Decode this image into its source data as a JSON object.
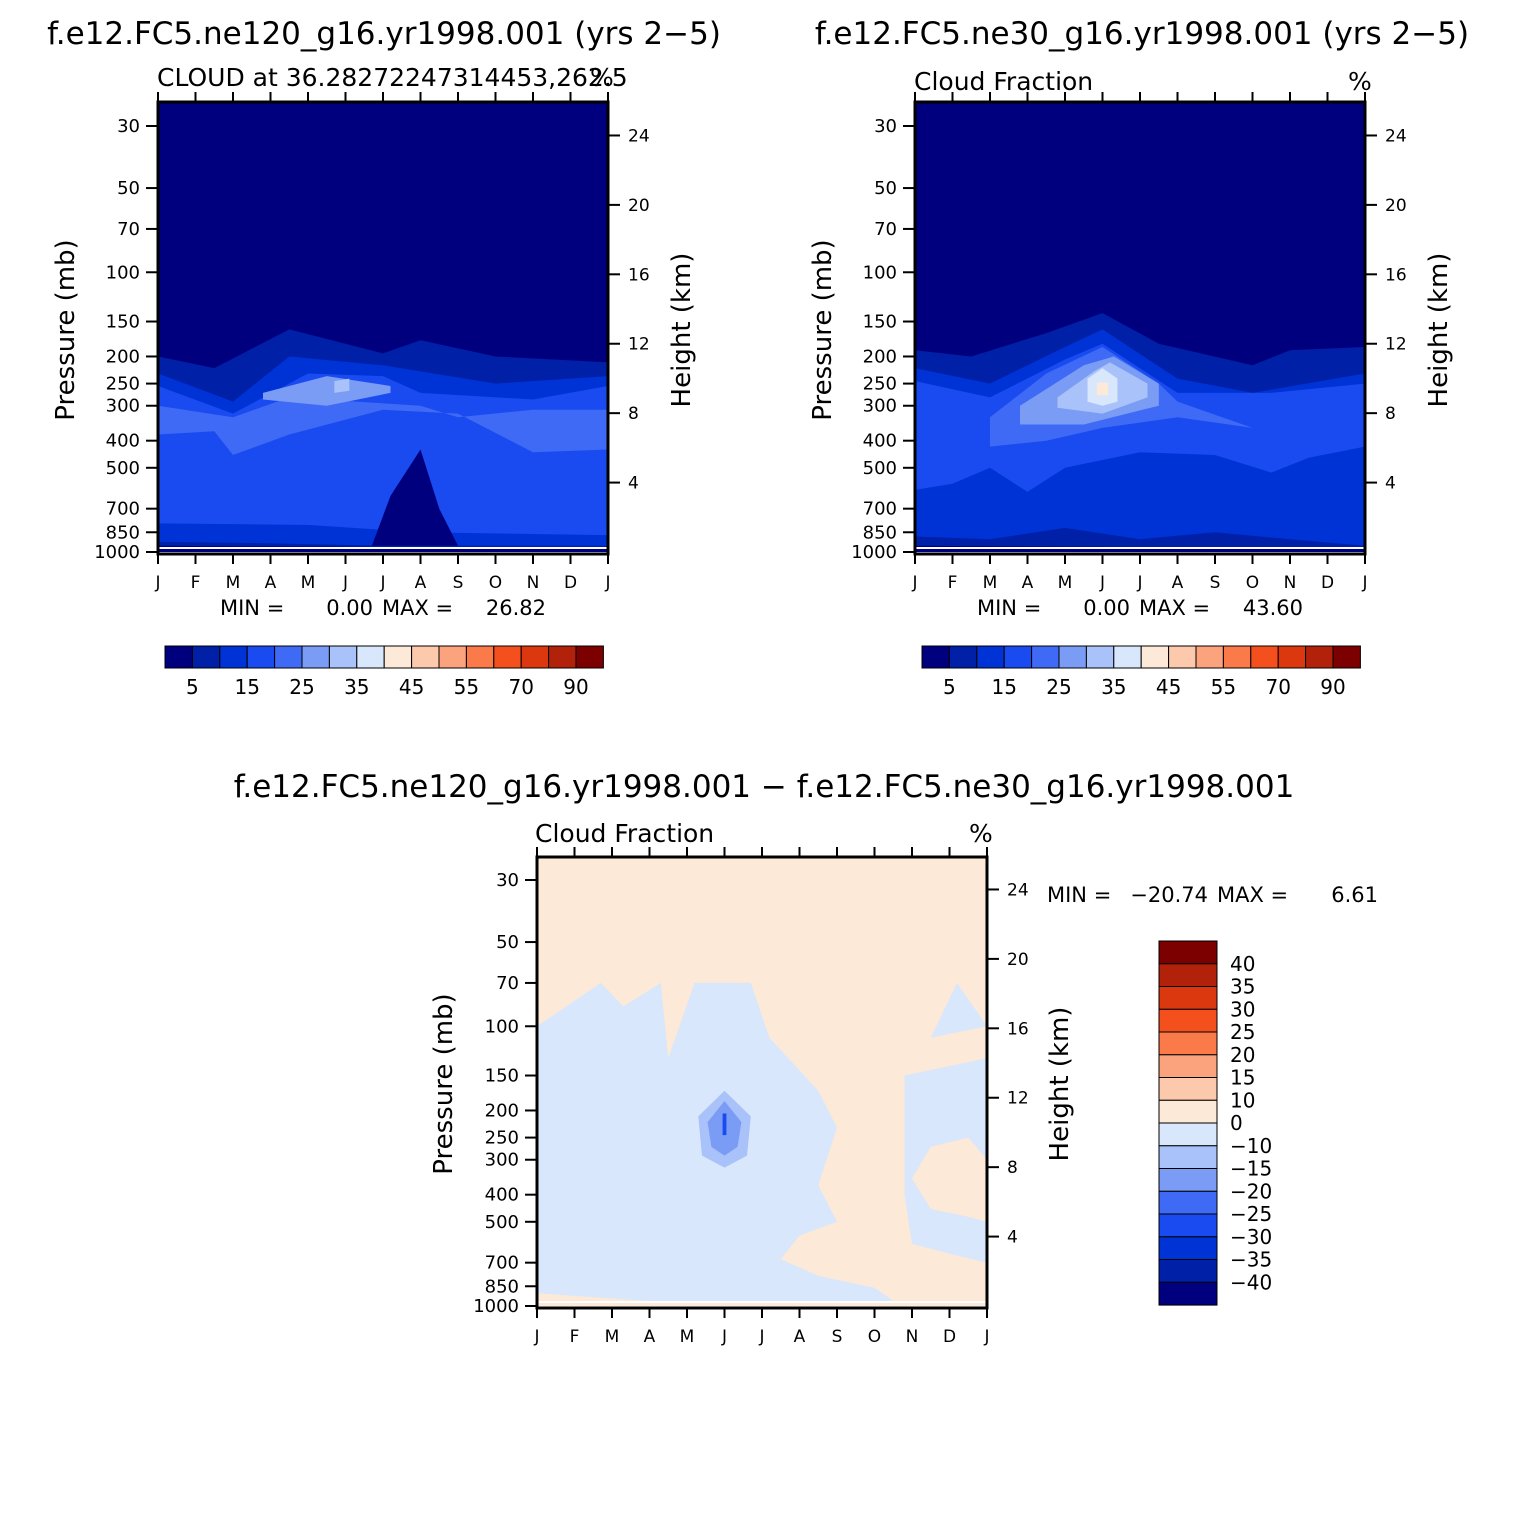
{
  "colors": {
    "palette": [
      "#00007f",
      "#0020a8",
      "#0033d6",
      "#1a4bf0",
      "#3f6af5",
      "#7a9cf5",
      "#a9c2fa",
      "#d8e7fb",
      "#fde9d7",
      "#fcc9ac",
      "#fba37c",
      "#fb7a4a",
      "#f4501e",
      "#dc3810",
      "#b2220a",
      "#7d0000"
    ]
  },
  "chart_data": [
    {
      "type": "heatmap",
      "id": "left",
      "title": "f.e12.FC5.ne120_g16.yr1998.001 (yrs 2−5)",
      "subtitle_left": "CLOUD at 36.28272247314453,262.5",
      "subtitle_right": "%",
      "ylabel": "Pressure (mb)",
      "y2label": "Height (km)",
      "xticks": [
        "J",
        "F",
        "M",
        "A",
        "M",
        "J",
        "J",
        "A",
        "S",
        "O",
        "N",
        "D",
        "J"
      ],
      "yticks": [
        "30",
        "50",
        "70",
        "100",
        "150",
        "200",
        "250",
        "300",
        "400",
        "500",
        "700",
        "850",
        "1000"
      ],
      "y2ticks": [
        "24",
        "20",
        "16",
        "12",
        "8",
        "4"
      ],
      "min_label": "MIN =",
      "min_value": "0.00",
      "max_label": "MAX =",
      "max_value": "26.82",
      "colorbar_labels": [
        "5",
        "15",
        "25",
        "35",
        "45",
        "55",
        "70",
        "90"
      ],
      "contour_levels": [
        5,
        10,
        15,
        20,
        25,
        30,
        35,
        40,
        45,
        50,
        55,
        60,
        70,
        80,
        90
      ],
      "bands": [
        {
          "level": 1,
          "top": [
            [
              0,
              200
            ],
            [
              1.5,
              220
            ],
            [
              3.5,
              160
            ],
            [
              6,
              195
            ],
            [
              7,
              175
            ],
            [
              9,
              200
            ],
            [
              12,
              210
            ]
          ],
          "bottom": [
            [
              0,
              950
            ],
            [
              6,
              960
            ],
            [
              12,
              960
            ]
          ]
        },
        {
          "level": 2,
          "top": [
            [
              0,
              230
            ],
            [
              2,
              290
            ],
            [
              3.5,
              200
            ],
            [
              6,
              215
            ],
            [
              9,
              250
            ],
            [
              12,
              235
            ]
          ],
          "bottom": [
            [
              0,
              920
            ],
            [
              3,
              930
            ],
            [
              6,
              950
            ],
            [
              12,
              950
            ]
          ]
        },
        {
          "level": 3,
          "top": [
            [
              0,
              255
            ],
            [
              2,
              320
            ],
            [
              4,
              230
            ],
            [
              6,
              235
            ],
            [
              7,
              270
            ],
            [
              10,
              285
            ],
            [
              12,
              255
            ]
          ],
          "bottom": [
            [
              0,
              790
            ],
            [
              4,
              800
            ],
            [
              7,
              850
            ],
            [
              12,
              870
            ]
          ]
        },
        {
          "level": 4,
          "top": [
            [
              0,
              300
            ],
            [
              2,
              330
            ],
            [
              3.5,
              280
            ],
            [
              7,
              300
            ],
            [
              8,
              330
            ],
            [
              10,
              310
            ],
            [
              12,
              310
            ]
          ],
          "bottom": [
            [
              0,
              380
            ],
            [
              1.5,
              370
            ],
            [
              2,
              450
            ],
            [
              3.5,
              380
            ],
            [
              6,
              310
            ],
            [
              8,
              320
            ],
            [
              10,
              440
            ],
            [
              12,
              430
            ]
          ]
        },
        {
          "level": 5,
          "top": [
            [
              2.8,
              270
            ],
            [
              4.5,
              235
            ],
            [
              6.2,
              255
            ]
          ],
          "bottom": [
            [
              2.8,
              285
            ],
            [
              4.5,
              300
            ],
            [
              6.2,
              270
            ]
          ]
        },
        {
          "level": 6,
          "top": [
            [
              4.7,
              245
            ],
            [
              5.1,
              240
            ]
          ],
          "bottom": [
            [
              4.7,
              270
            ],
            [
              5.1,
              265
            ]
          ]
        }
      ],
      "dark_blob": [
        [
          5.7,
          950
        ],
        [
          6.2,
          630
        ],
        [
          7,
          430
        ],
        [
          7.5,
          700
        ],
        [
          8,
          950
        ]
      ]
    },
    {
      "type": "heatmap",
      "id": "right",
      "title": "f.e12.FC5.ne30_g16.yr1998.001 (yrs 2−5)",
      "subtitle_left": "Cloud Fraction",
      "subtitle_right": "%",
      "ylabel": "Pressure (mb)",
      "y2label": "Height (km)",
      "xticks": [
        "J",
        "F",
        "M",
        "A",
        "M",
        "J",
        "J",
        "A",
        "S",
        "O",
        "N",
        "D",
        "J"
      ],
      "yticks": [
        "30",
        "50",
        "70",
        "100",
        "150",
        "200",
        "250",
        "300",
        "400",
        "500",
        "700",
        "850",
        "1000"
      ],
      "y2ticks": [
        "24",
        "20",
        "16",
        "12",
        "8",
        "4"
      ],
      "min_label": "MIN =",
      "min_value": "0.00",
      "max_label": "MAX =",
      "max_value": "43.60",
      "colorbar_labels": [
        "5",
        "15",
        "25",
        "35",
        "45",
        "55",
        "70",
        "90"
      ],
      "contour_levels": [
        5,
        10,
        15,
        20,
        25,
        30,
        35,
        40,
        45,
        50,
        55,
        60,
        70,
        80,
        90
      ],
      "bands": [
        {
          "level": 1,
          "top": [
            [
              0,
              190
            ],
            [
              1.5,
              200
            ],
            [
              3.5,
              165
            ],
            [
              5,
              140
            ],
            [
              6.5,
              180
            ],
            [
              9,
              215
            ],
            [
              10,
              190
            ],
            [
              12,
              185
            ]
          ],
          "bottom": [
            [
              0,
              950
            ],
            [
              6,
              960
            ],
            [
              12,
              960
            ]
          ]
        },
        {
          "level": 2,
          "top": [
            [
              0,
              220
            ],
            [
              2,
              250
            ],
            [
              4,
              185
            ],
            [
              5,
              160
            ],
            [
              7,
              240
            ],
            [
              9,
              270
            ],
            [
              12,
              230
            ]
          ],
          "bottom": [
            [
              0,
              880
            ],
            [
              2,
              900
            ],
            [
              4,
              820
            ],
            [
              6,
              900
            ],
            [
              8,
              850
            ],
            [
              10,
              900
            ],
            [
              12,
              950
            ]
          ]
        },
        {
          "level": 3,
          "top": [
            [
              0,
              245
            ],
            [
              2,
              280
            ],
            [
              4,
              205
            ],
            [
              5,
              180
            ],
            [
              7,
              270
            ],
            [
              9.5,
              270
            ],
            [
              12,
              250
            ]
          ],
          "bottom": [
            [
              0,
              600
            ],
            [
              1,
              570
            ],
            [
              2,
              500
            ],
            [
              3,
              610
            ],
            [
              4,
              500
            ],
            [
              6,
              440
            ],
            [
              8,
              450
            ],
            [
              9.5,
              520
            ],
            [
              10.5,
              460
            ],
            [
              12,
              420
            ]
          ]
        },
        {
          "level": 4,
          "top": [
            [
              2,
              330
            ],
            [
              3.5,
              230
            ],
            [
              5,
              185
            ],
            [
              6.5,
              250
            ],
            [
              7,
              290
            ]
          ],
          "bottom": [
            [
              2,
              420
            ],
            [
              3.5,
              400
            ],
            [
              5,
              360
            ],
            [
              7,
              330
            ],
            [
              9,
              360
            ]
          ]
        },
        {
          "level": 5,
          "top": [
            [
              2.8,
              300
            ],
            [
              4.5,
              215
            ],
            [
              5.3,
              200
            ],
            [
              6.5,
              250
            ]
          ],
          "bottom": [
            [
              2.8,
              350
            ],
            [
              4.5,
              350
            ],
            [
              6.5,
              300
            ]
          ]
        },
        {
          "level": 6,
          "top": [
            [
              3.8,
              280
            ],
            [
              4.8,
              225
            ],
            [
              5.2,
              210
            ],
            [
              6.2,
              250
            ]
          ],
          "bottom": [
            [
              3.8,
              305
            ],
            [
              5,
              320
            ],
            [
              6.2,
              280
            ]
          ]
        },
        {
          "level": 7,
          "top": [
            [
              4.6,
              240
            ],
            [
              5,
              220
            ],
            [
              5.4,
              240
            ]
          ],
          "bottom": [
            [
              4.6,
              290
            ],
            [
              5,
              300
            ],
            [
              5.4,
              290
            ]
          ]
        },
        {
          "level": 8,
          "top": [
            [
              4.85,
              248
            ],
            [
              5.15,
              248
            ]
          ],
          "bottom": [
            [
              4.85,
              275
            ],
            [
              5.15,
              275
            ]
          ]
        }
      ]
    },
    {
      "type": "heatmap",
      "id": "diff",
      "title": "f.e12.FC5.ne120_g16.yr1998.001 − f.e12.FC5.ne30_g16.yr1998.001",
      "subtitle_left": "Cloud Fraction",
      "subtitle_right": "%",
      "ylabel": "Pressure (mb)",
      "y2label": "Height (km)",
      "xticks": [
        "J",
        "F",
        "M",
        "A",
        "M",
        "J",
        "J",
        "A",
        "S",
        "O",
        "N",
        "D",
        "J"
      ],
      "yticks": [
        "30",
        "50",
        "70",
        "100",
        "150",
        "200",
        "250",
        "300",
        "400",
        "500",
        "700",
        "850",
        "1000"
      ],
      "y2ticks": [
        "24",
        "20",
        "16",
        "12",
        "8",
        "4"
      ],
      "min_label": "MIN =",
      "min_value": "−20.74",
      "max_label": "MAX =",
      "max_value": "6.61",
      "colorbar_labels": [
        "40",
        "35",
        "30",
        "25",
        "20",
        "15",
        "10",
        "0",
        "−10",
        "−15",
        "−20",
        "−25",
        "−30",
        "−35",
        "−40"
      ],
      "contour_levels": [
        -40,
        -35,
        -30,
        -25,
        -20,
        -15,
        -10,
        0,
        10,
        15,
        20,
        25,
        30,
        35,
        40
      ],
      "neg_region": [
        [
          0,
          100
        ],
        [
          1.7,
          70
        ],
        [
          2.3,
          85
        ],
        [
          3.3,
          70
        ],
        [
          3.5,
          130
        ],
        [
          4.2,
          70
        ],
        [
          5.7,
          70
        ],
        [
          6.2,
          110
        ],
        [
          7.5,
          170
        ],
        [
          8,
          230
        ],
        [
          7.5,
          370
        ],
        [
          8,
          500
        ],
        [
          7,
          560
        ],
        [
          6.5,
          680
        ],
        [
          7.5,
          780
        ],
        [
          9,
          860
        ],
        [
          9.5,
          960
        ],
        [
          3,
          960
        ],
        [
          1,
          920
        ],
        [
          0,
          900
        ]
      ],
      "neg_region2": [
        [
          9.8,
          150
        ],
        [
          12,
          130
        ],
        [
          12,
          300
        ],
        [
          11.5,
          250
        ],
        [
          10.5,
          270
        ],
        [
          10,
          350
        ],
        [
          10.5,
          450
        ],
        [
          11.5,
          480
        ],
        [
          12,
          500
        ],
        [
          12,
          700
        ],
        [
          11,
          650
        ],
        [
          10,
          600
        ],
        [
          9.8,
          400
        ]
      ],
      "neg_region3": [
        [
          10.5,
          110
        ],
        [
          11.2,
          70
        ],
        [
          12,
          100
        ]
      ],
      "neg_region4": [
        [
          0,
          760
        ],
        [
          0.5,
          780
        ],
        [
          1,
          840
        ],
        [
          2.3,
          890
        ],
        [
          0.5,
          880
        ],
        [
          0,
          850
        ]
      ],
      "neg_region5": [
        [
          0,
          280
        ],
        [
          1.2,
          250
        ],
        [
          0.8,
          290
        ],
        [
          0,
          330
        ]
      ],
      "blob_levels": [
        {
          "level": 9,
          "poly": [
            [
              4.3,
              210
            ],
            [
              5,
              170
            ],
            [
              5.7,
              210
            ],
            [
              5.6,
              290
            ],
            [
              5,
              320
            ],
            [
              4.4,
              290
            ]
          ]
        },
        {
          "level": 10,
          "poly": [
            [
              4.55,
              220
            ],
            [
              5,
              185
            ],
            [
              5.45,
              220
            ],
            [
              5.35,
              270
            ],
            [
              5,
              290
            ],
            [
              4.65,
              270
            ]
          ]
        },
        {
          "level": 11,
          "poly": [
            [
              4.95,
              205
            ],
            [
              5.05,
              205
            ],
            [
              5.05,
              245
            ],
            [
              4.95,
              245
            ]
          ]
        }
      ]
    }
  ]
}
